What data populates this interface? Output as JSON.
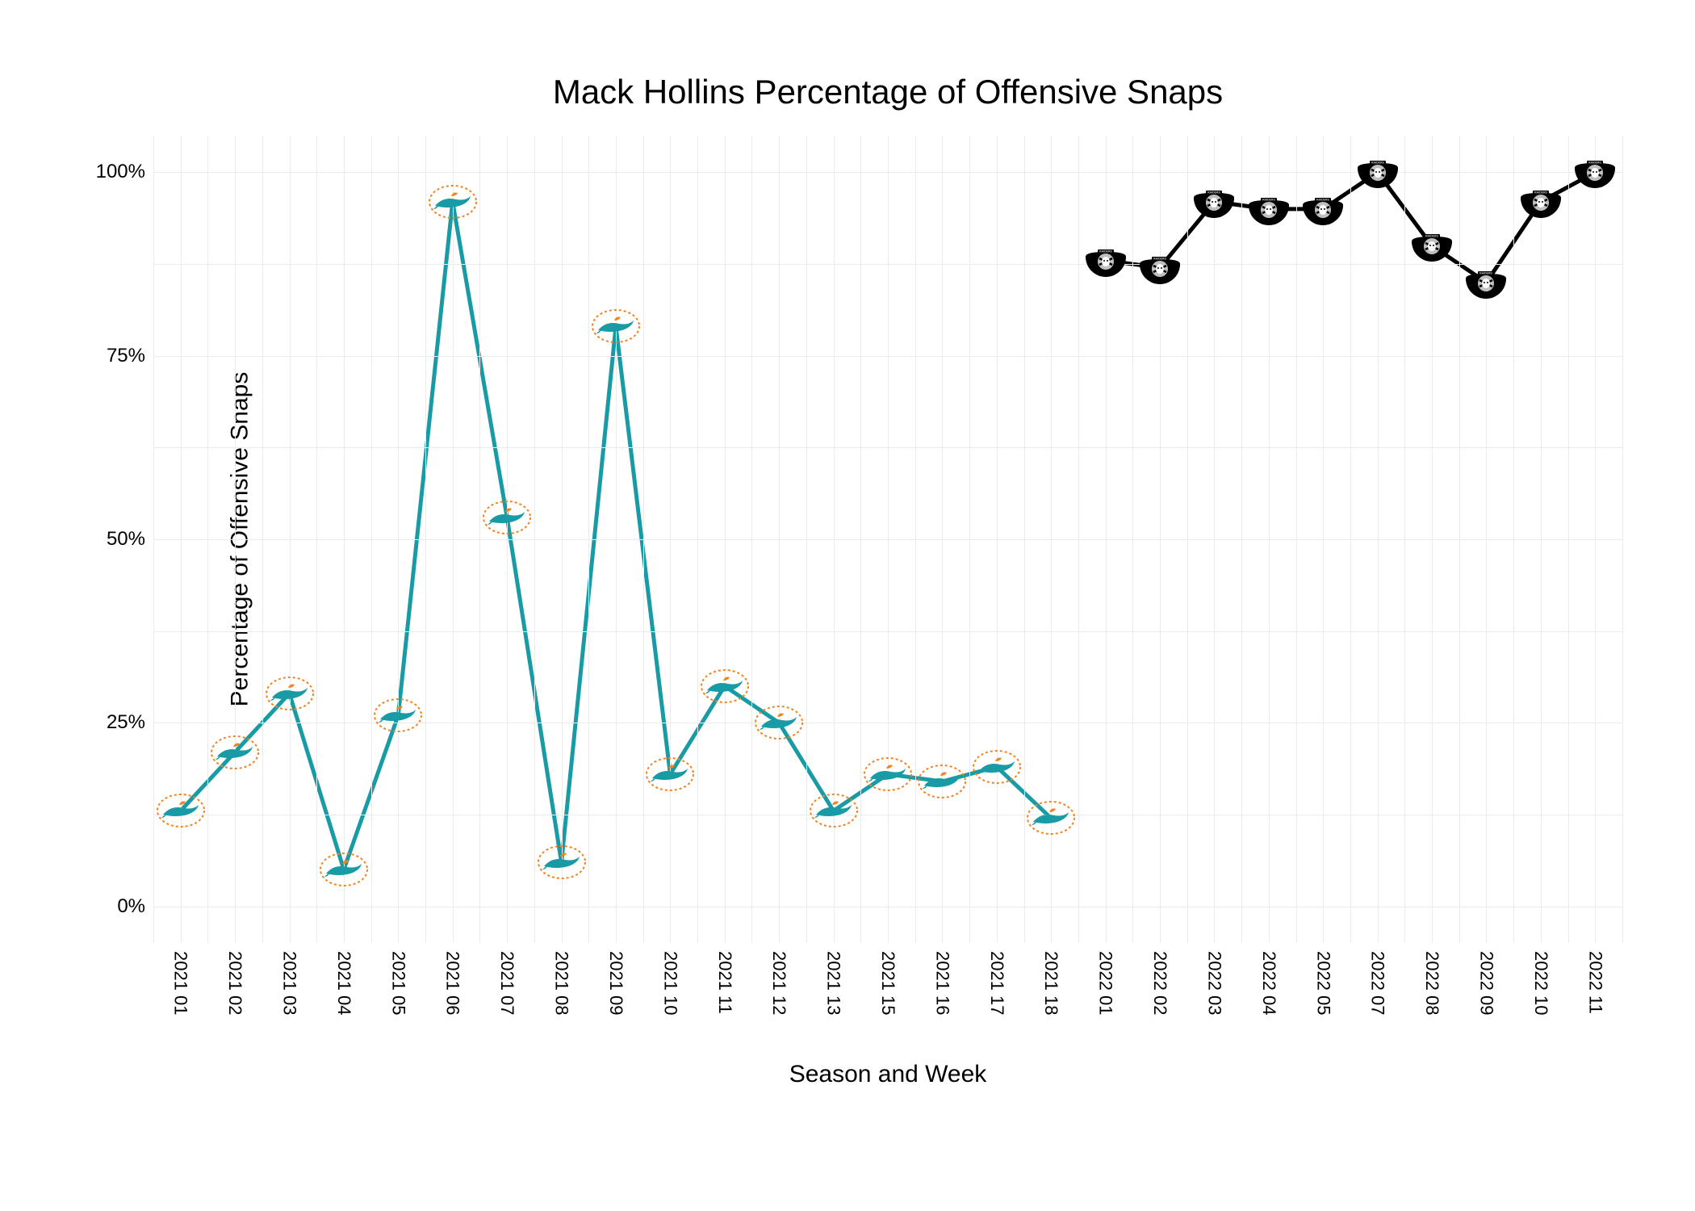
{
  "chart": {
    "title": "Mack Hollins Percentage of Offensive Snaps",
    "x_axis_title": "Season and Week",
    "y_axis_title": "Percentage of Offensive Snaps",
    "background_color": "#ffffff",
    "grid_color": "#ebebeb",
    "title_fontsize": 42,
    "axis_title_fontsize": 30,
    "tick_fontsize": 24,
    "y_ticks": [
      {
        "value": 0,
        "label": "0%"
      },
      {
        "value": 25,
        "label": "25%"
      },
      {
        "value": 50,
        "label": "50%"
      },
      {
        "value": 75,
        "label": "75%"
      },
      {
        "value": 100,
        "label": "100%"
      }
    ],
    "y_minor_ticks": [
      12.5,
      37.5,
      62.5,
      87.5
    ],
    "ylim": [
      -5,
      105
    ],
    "x_categories": [
      "2021 01",
      "2021 02",
      "2021 03",
      "2021 04",
      "2021 05",
      "2021 06",
      "2021 07",
      "2021 08",
      "2021 09",
      "2021 10",
      "2021 11",
      "2021 12",
      "2021 13",
      "2021 15",
      "2021 16",
      "2021 17",
      "2021 18",
      "2022 01",
      "2022 02",
      "2022 03",
      "2022 04",
      "2022 05",
      "2022 07",
      "2022 08",
      "2022 09",
      "2022 10",
      "2022 11"
    ],
    "series": [
      {
        "name": "Dolphins",
        "color": "#199ba6",
        "line_width": 5,
        "marker": "dolphins",
        "points": [
          {
            "x": 0,
            "y": 13
          },
          {
            "x": 1,
            "y": 21
          },
          {
            "x": 2,
            "y": 29
          },
          {
            "x": 3,
            "y": 5
          },
          {
            "x": 4,
            "y": 26
          },
          {
            "x": 5,
            "y": 96
          },
          {
            "x": 6,
            "y": 53
          },
          {
            "x": 7,
            "y": 6
          },
          {
            "x": 8,
            "y": 79
          },
          {
            "x": 9,
            "y": 18
          },
          {
            "x": 10,
            "y": 30
          },
          {
            "x": 11,
            "y": 25
          },
          {
            "x": 12,
            "y": 13
          },
          {
            "x": 13,
            "y": 18
          },
          {
            "x": 14,
            "y": 17
          },
          {
            "x": 15,
            "y": 19
          },
          {
            "x": 16,
            "y": 12
          }
        ]
      },
      {
        "name": "Raiders",
        "color": "#000000",
        "line_width": 5,
        "marker": "raiders",
        "points": [
          {
            "x": 17,
            "y": 88
          },
          {
            "x": 18,
            "y": 87
          },
          {
            "x": 19,
            "y": 96
          },
          {
            "x": 20,
            "y": 95
          },
          {
            "x": 21,
            "y": 95
          },
          {
            "x": 22,
            "y": 100
          },
          {
            "x": 23,
            "y": 90
          },
          {
            "x": 24,
            "y": 85
          },
          {
            "x": 25,
            "y": 96
          },
          {
            "x": 26,
            "y": 100
          }
        ]
      }
    ]
  }
}
